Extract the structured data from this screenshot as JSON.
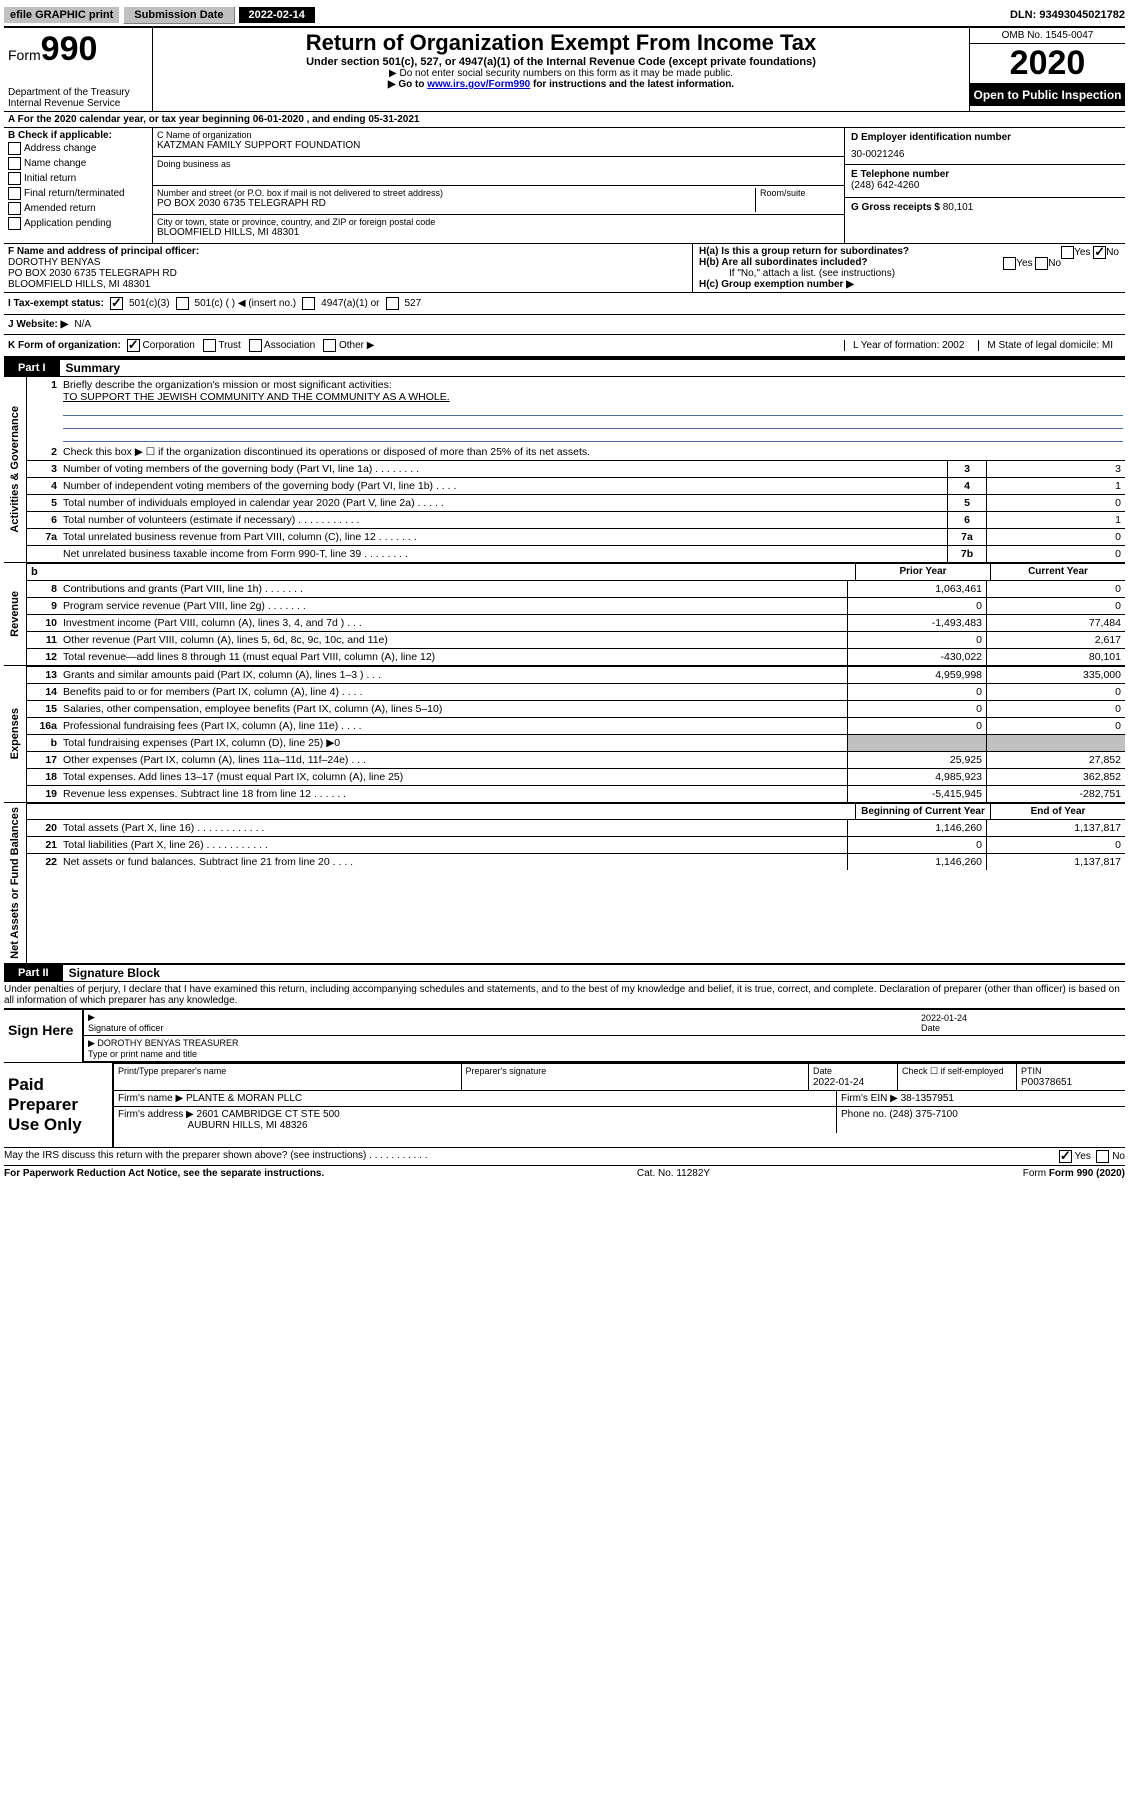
{
  "top": {
    "efile": "efile GRAPHIC print",
    "submission_label": "Submission Date",
    "submission_date": "2022-02-14",
    "dln": "DLN: 93493045021782"
  },
  "header": {
    "form_word": "Form",
    "form_num": "990",
    "dept": "Department of the Treasury\nInternal Revenue Service",
    "title": "Return of Organization Exempt From Income Tax",
    "sub": "Under section 501(c), 527, or 4947(a)(1) of the Internal Revenue Code (except private foundations)",
    "note1": "▶ Do not enter social security numbers on this form as it may be made public.",
    "note2_pre": "▶ Go to ",
    "note2_link": "www.irs.gov/Form990",
    "note2_post": " for instructions and the latest information.",
    "omb": "OMB No. 1545-0047",
    "year": "2020",
    "open": "Open to Public Inspection"
  },
  "A": {
    "text": "A For the 2020 calendar year, or tax year beginning 06-01-2020    , and ending 05-31-2021"
  },
  "B": {
    "label": "B Check if applicable:",
    "opts": [
      "Address change",
      "Name change",
      "Initial return",
      "Final return/terminated",
      "Amended return",
      "Application pending"
    ]
  },
  "C": {
    "name_label": "C Name of organization",
    "name": "KATZMAN FAMILY SUPPORT FOUNDATION",
    "dba_label": "Doing business as",
    "dba": "",
    "addr_label": "Number and street (or P.O. box if mail is not delivered to street address)",
    "room_label": "Room/suite",
    "addr": "PO BOX 2030 6735 TELEGRAPH RD",
    "city_label": "City or town, state or province, country, and ZIP or foreign postal code",
    "city": "BLOOMFIELD HILLS, MI  48301"
  },
  "D": {
    "label": "D Employer identification number",
    "value": "30-0021246"
  },
  "E": {
    "label": "E Telephone number",
    "value": "(248) 642-4260"
  },
  "G": {
    "label": "G Gross receipts $",
    "value": "80,101"
  },
  "F": {
    "label": "F  Name and address of principal officer:",
    "name": "DOROTHY BENYAS",
    "addr1": "PO BOX 2030 6735 TELEGRAPH RD",
    "addr2": "BLOOMFIELD HILLS, MI  48301"
  },
  "H": {
    "a_label": "H(a)  Is this a group return for subordinates?",
    "a_yes": "Yes",
    "a_no": "No",
    "b_label": "H(b)  Are all subordinates included?",
    "b_note": "If \"No,\" attach a list. (see instructions)",
    "c_label": "H(c)  Group exemption number ▶"
  },
  "I": {
    "label": "I   Tax-exempt status:",
    "o1": "501(c)(3)",
    "o2": "501(c) (   ) ◀ (insert no.)",
    "o3": "4947(a)(1) or",
    "o4": "527"
  },
  "J": {
    "label": "J   Website: ▶",
    "value": "N/A"
  },
  "K": {
    "label": "K Form of organization:",
    "opts": [
      "Corporation",
      "Trust",
      "Association",
      "Other ▶"
    ],
    "L": "L Year of formation: 2002",
    "M": "M State of legal domicile: MI"
  },
  "part1": {
    "label": "Part I",
    "title": "Summary",
    "side_gov": "Activities & Governance",
    "side_rev": "Revenue",
    "side_exp": "Expenses",
    "side_net": "Net Assets or Fund Balances",
    "l1": "Briefly describe the organization's mission or most significant activities:",
    "mission": "TO SUPPORT THE JEWISH COMMUNITY AND THE COMMUNITY AS A WHOLE.",
    "l2": "Check this box ▶ ☐  if the organization discontinued its operations or disposed of more than 25% of its net assets.",
    "rows_single": [
      {
        "n": "3",
        "d": "Number of voting members of the governing body (Part VI, line 1a)  .    .    .    .    .    .    .    .",
        "b": "3",
        "v": "3"
      },
      {
        "n": "4",
        "d": "Number of independent voting members of the governing body (Part VI, line 1b)   .    .    .    .",
        "b": "4",
        "v": "1"
      },
      {
        "n": "5",
        "d": "Total number of individuals employed in calendar year 2020 (Part V, line 2a)    .    .    .    .    .",
        "b": "5",
        "v": "0"
      },
      {
        "n": "6",
        "d": "Total number of volunteers (estimate if necessary)    .    .    .    .    .    .    .    .    .    .    .",
        "b": "6",
        "v": "1"
      },
      {
        "n": "7a",
        "d": "Total unrelated business revenue from Part VIII, column (C), line 12    .    .    .    .    .    .    .",
        "b": "7a",
        "v": "0"
      },
      {
        "n": "",
        "d": "Net unrelated business taxable income from Form 990-T, line 39     .    .    .    .    .    .    .    .",
        "b": "7b",
        "v": "0"
      }
    ],
    "head_b": "b",
    "prior": "Prior Year",
    "current": "Current Year",
    "rows_rev": [
      {
        "n": "8",
        "d": "Contributions and grants (Part VIII, line 1h)    .    .    .    .    .    .    .",
        "p": "1,063,461",
        "c": "0"
      },
      {
        "n": "9",
        "d": "Program service revenue (Part VIII, line 2g)    .    .    .    .    .    .    .",
        "p": "0",
        "c": "0"
      },
      {
        "n": "10",
        "d": "Investment income (Part VIII, column (A), lines 3, 4, and 7d )    .    .    .",
        "p": "-1,493,483",
        "c": "77,484"
      },
      {
        "n": "11",
        "d": "Other revenue (Part VIII, column (A), lines 5, 6d, 8c, 9c, 10c, and 11e)",
        "p": "0",
        "c": "2,617"
      },
      {
        "n": "12",
        "d": "Total revenue—add lines 8 through 11 (must equal Part VIII, column (A), line 12)",
        "p": "-430,022",
        "c": "80,101"
      }
    ],
    "rows_exp": [
      {
        "n": "13",
        "d": "Grants and similar amounts paid (Part IX, column (A), lines 1–3 )    .    .    .",
        "p": "4,959,998",
        "c": "335,000"
      },
      {
        "n": "14",
        "d": "Benefits paid to or for members (Part IX, column (A), line 4)    .    .    .    .",
        "p": "0",
        "c": "0"
      },
      {
        "n": "15",
        "d": "Salaries, other compensation, employee benefits (Part IX, column (A), lines 5–10)",
        "p": "0",
        "c": "0"
      },
      {
        "n": "16a",
        "d": "Professional fundraising fees (Part IX, column (A), line 11e)    .    .    .    .",
        "p": "0",
        "c": "0"
      },
      {
        "n": "b",
        "d": "Total fundraising expenses (Part IX, column (D), line 25) ▶0",
        "p": "",
        "c": ""
      },
      {
        "n": "17",
        "d": "Other expenses (Part IX, column (A), lines 11a–11d, 11f–24e)    .    .    .",
        "p": "25,925",
        "c": "27,852"
      },
      {
        "n": "18",
        "d": "Total expenses. Add lines 13–17 (must equal Part IX, column (A), line 25)",
        "p": "4,985,923",
        "c": "362,852"
      },
      {
        "n": "19",
        "d": "Revenue less expenses. Subtract line 18 from line 12    .    .    .    .    .    .",
        "p": "-5,415,945",
        "c": "-282,751"
      }
    ],
    "begin": "Beginning of Current Year",
    "end": "End of Year",
    "rows_net": [
      {
        "n": "20",
        "d": "Total assets (Part X, line 16)    .    .    .    .    .    .    .    .    .    .    .    .",
        "p": "1,146,260",
        "c": "1,137,817"
      },
      {
        "n": "21",
        "d": "Total liabilities (Part X, line 26)    .    .    .    .    .    .    .    .    .    .    .",
        "p": "0",
        "c": "0"
      },
      {
        "n": "22",
        "d": "Net assets or fund balances. Subtract line 21 from line 20    .    .    .    .",
        "p": "1,146,260",
        "c": "1,137,817"
      }
    ]
  },
  "part2": {
    "label": "Part II",
    "title": "Signature Block",
    "perjury": "Under penalties of perjury, I declare that I have examined this return, including accompanying schedules and statements, and to the best of my knowledge and belief, it is true, correct, and complete. Declaration of preparer (other than officer) is based on all information of which preparer has any knowledge.",
    "sign_here": "Sign Here",
    "sig_officer": "Signature of officer",
    "sig_date_label": "Date",
    "sig_date": "2022-01-24",
    "officer_name": "DOROTHY BENYAS TREASURER",
    "type_label": "Type or print name and title",
    "paid": "Paid Preparer Use Only",
    "prep_name_label": "Print/Type preparer's name",
    "prep_sig_label": "Preparer's signature",
    "prep_date_label": "Date",
    "prep_date": "2022-01-24",
    "prep_check_label": "Check ☐ if self-employed",
    "ptin_label": "PTIN",
    "ptin": "P00378651",
    "firm_name_label": "Firm's name      ▶",
    "firm_name": "PLANTE & MORAN PLLC",
    "firm_ein_label": "Firm's EIN ▶",
    "firm_ein": "38-1357951",
    "firm_addr_label": "Firm's address ▶",
    "firm_addr1": "2601 CAMBRIDGE CT STE 500",
    "firm_addr2": "AUBURN HILLS, MI  48326",
    "firm_phone_label": "Phone no.",
    "firm_phone": "(248) 375-7100",
    "discuss": "May the IRS discuss this return with the preparer shown above? (see instructions)    .    .    .    .    .    .    .    .    .    .    .",
    "yes": "Yes",
    "no": "No"
  },
  "footer": {
    "pra": "For Paperwork Reduction Act Notice, see the separate instructions.",
    "cat": "Cat. No. 11282Y",
    "form": "Form 990 (2020)"
  }
}
